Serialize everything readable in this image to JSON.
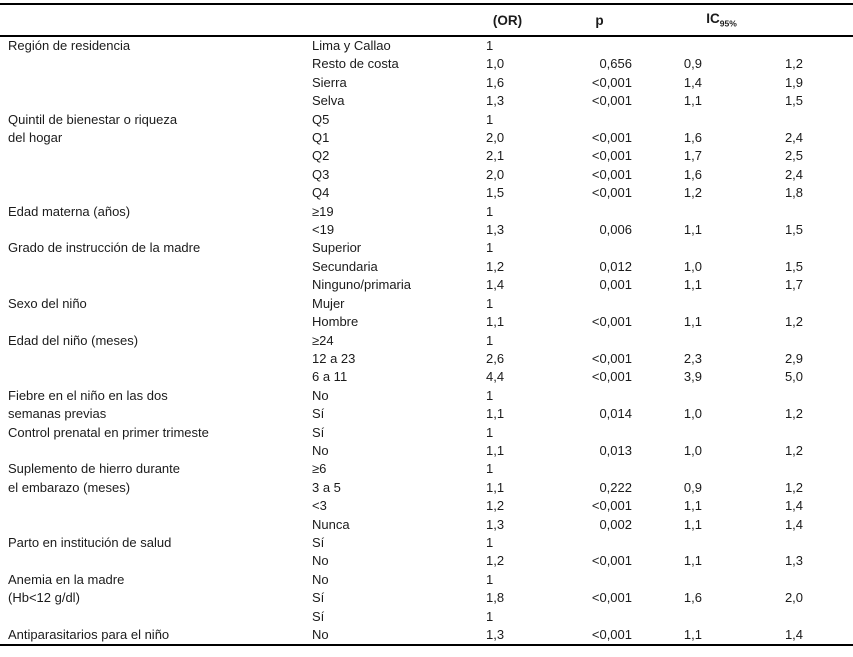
{
  "colors": {
    "background": "#ffffff",
    "text": "#1b1b1b",
    "rule": "#000000"
  },
  "table": {
    "header": {
      "variable": "",
      "category": "",
      "or": "(OR)",
      "p": "p",
      "ic": "IC",
      "ic_sub": "95%"
    },
    "rows": [
      {
        "v": "Región de residencia",
        "c": "Lima y Callao",
        "or": "1",
        "p": "",
        "lo": "",
        "hi": ""
      },
      {
        "v": "",
        "c": "Resto de costa",
        "or": "1,0",
        "p": "0,656",
        "lo": "0,9",
        "hi": "1,2"
      },
      {
        "v": "",
        "c": "Sierra",
        "or": "1,6",
        "p": "<0,001",
        "lo": "1,4",
        "hi": "1,9"
      },
      {
        "v": "",
        "c": "Selva",
        "or": "1,3",
        "p": "<0,001",
        "lo": "1,1",
        "hi": "1,5"
      },
      {
        "v": "Quintil de bienestar o riqueza",
        "c": "Q5",
        "or": "1",
        "p": "",
        "lo": "",
        "hi": ""
      },
      {
        "v": "del hogar",
        "c": "Q1",
        "or": "2,0",
        "p": "<0,001",
        "lo": "1,6",
        "hi": "2,4"
      },
      {
        "v": "",
        "c": "Q2",
        "or": "2,1",
        "p": "<0,001",
        "lo": "1,7",
        "hi": "2,5"
      },
      {
        "v": "",
        "c": "Q3",
        "or": "2,0",
        "p": "<0,001",
        "lo": "1,6",
        "hi": "2,4"
      },
      {
        "v": "",
        "c": "Q4",
        "or": "1,5",
        "p": "<0,001",
        "lo": "1,2",
        "hi": "1,8"
      },
      {
        "v": "Edad materna (años)",
        "c": "≥19",
        "or": "1",
        "p": "",
        "lo": "",
        "hi": ""
      },
      {
        "v": "",
        "c": "<19",
        "or": "1,3",
        "p": "0,006",
        "lo": "1,1",
        "hi": "1,5"
      },
      {
        "v": "Grado de instrucción de la madre",
        "c": "Superior",
        "or": "1",
        "p": "",
        "lo": "",
        "hi": ""
      },
      {
        "v": "",
        "c": "Secundaria",
        "or": "1,2",
        "p": "0,012",
        "lo": "1,0",
        "hi": "1,5"
      },
      {
        "v": "",
        "c": "Ninguno/primaria",
        "or": "1,4",
        "p": "0,001",
        "lo": "1,1",
        "hi": "1,7"
      },
      {
        "v": "Sexo del niño",
        "c": "Mujer",
        "or": "1",
        "p": "",
        "lo": "",
        "hi": ""
      },
      {
        "v": "",
        "c": "Hombre",
        "or": "1,1",
        "p": "<0,001",
        "lo": "1,1",
        "hi": "1,2"
      },
      {
        "v": "Edad del niño (meses)",
        "c": "≥24",
        "or": "1",
        "p": "",
        "lo": "",
        "hi": ""
      },
      {
        "v": "",
        "c": "12 a 23",
        "or": "2,6",
        "p": "<0,001",
        "lo": "2,3",
        "hi": "2,9"
      },
      {
        "v": "",
        "c": "6 a 11",
        "or": "4,4",
        "p": "<0,001",
        "lo": "3,9",
        "hi": "5,0"
      },
      {
        "v": "Fiebre en el niño en las dos",
        "c": "No",
        "or": "1",
        "p": "",
        "lo": "",
        "hi": ""
      },
      {
        "v": "semanas previas",
        "c": "Sí",
        "or": "1,1",
        "p": "0,014",
        "lo": "1,0",
        "hi": "1,2"
      },
      {
        "v": "Control prenatal en primer trimeste",
        "c": "Sí",
        "or": "1",
        "p": "",
        "lo": "",
        "hi": ""
      },
      {
        "v": "",
        "c": "No",
        "or": "1,1",
        "p": "0,013",
        "lo": "1,0",
        "hi": "1,2"
      },
      {
        "v": "Suplemento de hierro durante",
        "c": "≥6",
        "or": "1",
        "p": "",
        "lo": "",
        "hi": ""
      },
      {
        "v": "el embarazo (meses)",
        "c": "3 a 5",
        "or": "1,1",
        "p": "0,222",
        "lo": "0,9",
        "hi": "1,2"
      },
      {
        "v": "",
        "c": "<3",
        "or": "1,2",
        "p": "<0,001",
        "lo": "1,1",
        "hi": "1,4"
      },
      {
        "v": "",
        "c": "Nunca",
        "or": "1,3",
        "p": "0,002",
        "lo": "1,1",
        "hi": "1,4"
      },
      {
        "v": "Parto en institución de salud",
        "c": "Sí",
        "or": "1",
        "p": "",
        "lo": "",
        "hi": ""
      },
      {
        "v": "",
        "c": "No",
        "or": "1,2",
        "p": "<0,001",
        "lo": "1,1",
        "hi": "1,3"
      },
      {
        "v": "Anemia en la madre",
        "c": "No",
        "or": "1",
        "p": "",
        "lo": "",
        "hi": ""
      },
      {
        "v": "(Hb<12 g/dl)",
        "c": "Sí",
        "or": "1,8",
        "p": "<0,001",
        "lo": "1,6",
        "hi": "2,0"
      },
      {
        "v": "",
        "c": "Sí",
        "or": "1",
        "p": "",
        "lo": "",
        "hi": ""
      },
      {
        "v": "Antiparasitarios para el niño",
        "c": "No",
        "or": "1,3",
        "p": "<0,001",
        "lo": "1,1",
        "hi": "1,4"
      }
    ]
  }
}
